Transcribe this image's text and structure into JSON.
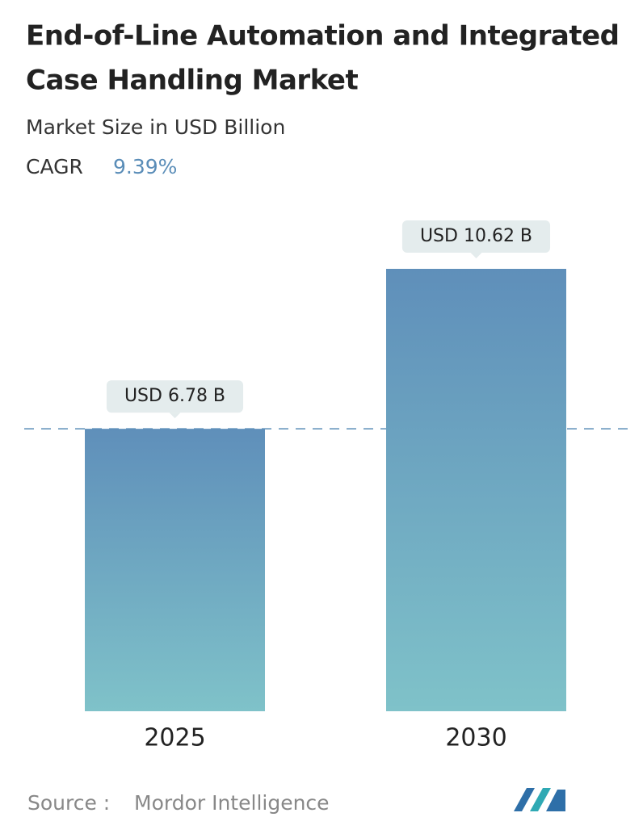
{
  "chart_data": {
    "type": "bar",
    "title": [
      "End-of-Line Automation and Integrated",
      "Case Handling Market"
    ],
    "subtitle": "Market Size in USD Billion",
    "cagr": {
      "label": "CAGR",
      "value": "9.39%"
    },
    "categories": [
      "2025",
      "2030"
    ],
    "values": [
      6.78,
      10.62
    ],
    "value_labels": [
      "USD 6.78 B",
      "USD 10.62 B"
    ],
    "source": {
      "label": "Source :",
      "value": "Mordor Intelligence"
    }
  }
}
